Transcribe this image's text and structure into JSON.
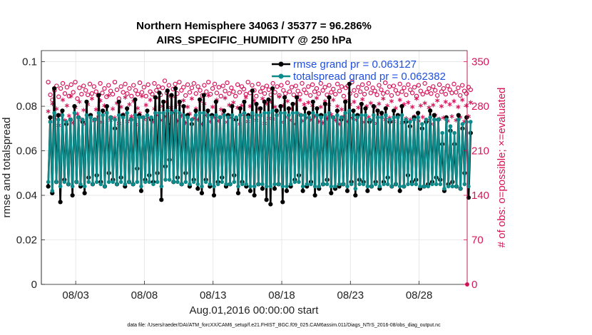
{
  "chart_data": {
    "type": "line",
    "title_line1": "Northern Hemisphere 34063 / 35377 = 96.286%",
    "title_line2": "AIRS_SPECIFIC_HUMIDITY @ 250 hPa",
    "xlabel": "Aug.01,2016 00:00:00 start",
    "ylabel": "rmse and totalspread",
    "y2label": "# of obs: o=possible; ×=evaluated",
    "footer": "data file: /Users/raeder/DAI/ATM_forcXX/CAM6_setup/f.e21.FHIST_BGC.f09_025.CAM6assim.011/Diags_NTrS_2016-08/obs_diag_output.nc",
    "x_range_days": [
      0.5,
      31.5
    ],
    "x_ticks": [
      {
        "day": 3,
        "label": "08/03"
      },
      {
        "day": 8,
        "label": "08/08"
      },
      {
        "day": 13,
        "label": "08/13"
      },
      {
        "day": 18,
        "label": "08/18"
      },
      {
        "day": 23,
        "label": "08/23"
      },
      {
        "day": 28,
        "label": "08/28"
      }
    ],
    "ylim": [
      0,
      0.105
    ],
    "y_ticks": [
      {
        "value": 0,
        "label": "0"
      },
      {
        "value": 0.02,
        "label": "0.02"
      },
      {
        "value": 0.04,
        "label": "0.04"
      },
      {
        "value": 0.06,
        "label": "0.06"
      },
      {
        "value": 0.08,
        "label": "0.08"
      },
      {
        "value": 0.1,
        "label": "0.1"
      }
    ],
    "y2lim": [
      0,
      367.5
    ],
    "y2_ticks": [
      {
        "value": 0,
        "label": "0"
      },
      {
        "value": 70,
        "label": "70"
      },
      {
        "value": 140,
        "label": "140"
      },
      {
        "value": 210,
        "label": "210"
      },
      {
        "value": 280,
        "label": "280"
      },
      {
        "value": 350,
        "label": "350"
      }
    ],
    "grid": true,
    "legend_position": "top-right",
    "series": [
      {
        "name": "rmse",
        "legend": "rmse grand pr = 0.063127",
        "color": "#000000",
        "marker": "filled-circle",
        "values": [
          0.044,
          0.075,
          0.041,
          0.088,
          0.046,
          0.076,
          0.037,
          0.078,
          0.047,
          0.072,
          0.045,
          0.074,
          0.04,
          0.08,
          0.046,
          0.075,
          0.044,
          0.073,
          0.041,
          0.082,
          0.048,
          0.076,
          0.045,
          0.074,
          0.049,
          0.085,
          0.046,
          0.078,
          0.044,
          0.08,
          0.05,
          0.075,
          0.047,
          0.07,
          0.045,
          0.082,
          0.048,
          0.076,
          0.044,
          0.079,
          0.046,
          0.074,
          0.045,
          0.083,
          0.052,
          0.076,
          0.042,
          0.075,
          0.047,
          0.078,
          0.049,
          0.074,
          0.046,
          0.084,
          0.05,
          0.086,
          0.038,
          0.082,
          0.053,
          0.087,
          0.056,
          0.085,
          0.046,
          0.088,
          0.048,
          0.082,
          0.045,
          0.08,
          0.05,
          0.076,
          0.044,
          0.072,
          0.047,
          0.078,
          0.043,
          0.083,
          0.041,
          0.085,
          0.047,
          0.078,
          0.044,
          0.076,
          0.04,
          0.082,
          0.046,
          0.075,
          0.048,
          0.078,
          0.044,
          0.076,
          0.045,
          0.08,
          0.049,
          0.074,
          0.041,
          0.079,
          0.046,
          0.082,
          0.044,
          0.076,
          0.042,
          0.087,
          0.04,
          0.081,
          0.045,
          0.079,
          0.043,
          0.082,
          0.038,
          0.083,
          0.036,
          0.088,
          0.043,
          0.078,
          0.045,
          0.08,
          0.037,
          0.084,
          0.042,
          0.079,
          0.044,
          0.081,
          0.047,
          0.084,
          0.049,
          0.076,
          0.042,
          0.079,
          0.044,
          0.077,
          0.046,
          0.082,
          0.04,
          0.079,
          0.043,
          0.076,
          0.045,
          0.081,
          0.047,
          0.084,
          0.041,
          0.075,
          0.043,
          0.078,
          0.044,
          0.074,
          0.045,
          0.082,
          0.042,
          0.09,
          0.046,
          0.078,
          0.04,
          0.076,
          0.047,
          0.081,
          0.046,
          0.079,
          0.042,
          0.073,
          0.044,
          0.08,
          0.046,
          0.078,
          0.043,
          0.077,
          0.046,
          0.079,
          0.048,
          0.073,
          0.044,
          0.078,
          0.045,
          0.076,
          0.042,
          0.08,
          0.044,
          0.073,
          0.049,
          0.071,
          0.046,
          0.075,
          0.047,
          0.077,
          0.043,
          0.07,
          0.044,
          0.073,
          0.045,
          0.078,
          0.046,
          0.076,
          0.048,
          0.074,
          0.047,
          0.063,
          0.042,
          0.075,
          0.045,
          0.069,
          0.046,
          0.063,
          0.044,
          0.076,
          0.043,
          0.07,
          0.05,
          0.075,
          0.039,
          0.068
        ]
      },
      {
        "name": "totalspread",
        "legend": "totalspread grand pr = 0.062382",
        "color": "#0d8a8a",
        "marker": "filled-circle",
        "values": [
          0.046,
          0.073,
          0.042,
          0.077,
          0.046,
          0.074,
          0.044,
          0.076,
          0.046,
          0.073,
          0.045,
          0.074,
          0.044,
          0.077,
          0.046,
          0.075,
          0.045,
          0.074,
          0.044,
          0.076,
          0.046,
          0.075,
          0.045,
          0.074,
          0.046,
          0.077,
          0.045,
          0.076,
          0.044,
          0.077,
          0.046,
          0.075,
          0.046,
          0.074,
          0.045,
          0.076,
          0.046,
          0.075,
          0.045,
          0.077,
          0.046,
          0.074,
          0.045,
          0.076,
          0.046,
          0.075,
          0.044,
          0.075,
          0.046,
          0.076,
          0.046,
          0.075,
          0.045,
          0.077,
          0.046,
          0.077,
          0.044,
          0.077,
          0.047,
          0.078,
          0.047,
          0.077,
          0.046,
          0.078,
          0.046,
          0.077,
          0.045,
          0.076,
          0.046,
          0.075,
          0.045,
          0.074,
          0.046,
          0.076,
          0.045,
          0.077,
          0.044,
          0.077,
          0.046,
          0.076,
          0.045,
          0.075,
          0.044,
          0.076,
          0.045,
          0.075,
          0.046,
          0.076,
          0.045,
          0.075,
          0.045,
          0.076,
          0.046,
          0.075,
          0.044,
          0.076,
          0.045,
          0.077,
          0.045,
          0.075,
          0.044,
          0.077,
          0.044,
          0.076,
          0.045,
          0.076,
          0.045,
          0.077,
          0.044,
          0.077,
          0.044,
          0.078,
          0.045,
          0.076,
          0.045,
          0.077,
          0.044,
          0.077,
          0.044,
          0.076,
          0.045,
          0.077,
          0.046,
          0.077,
          0.046,
          0.076,
          0.044,
          0.076,
          0.045,
          0.075,
          0.045,
          0.077,
          0.044,
          0.076,
          0.044,
          0.075,
          0.045,
          0.076,
          0.045,
          0.077,
          0.044,
          0.075,
          0.044,
          0.076,
          0.045,
          0.075,
          0.045,
          0.077,
          0.044,
          0.078,
          0.045,
          0.076,
          0.043,
          0.075,
          0.045,
          0.076,
          0.045,
          0.076,
          0.044,
          0.074,
          0.044,
          0.076,
          0.045,
          0.075,
          0.044,
          0.075,
          0.045,
          0.076,
          0.045,
          0.074,
          0.044,
          0.075,
          0.045,
          0.075,
          0.044,
          0.076,
          0.044,
          0.074,
          0.045,
          0.073,
          0.045,
          0.074,
          0.045,
          0.075,
          0.044,
          0.072,
          0.044,
          0.074,
          0.044,
          0.075,
          0.045,
          0.074,
          0.045,
          0.074,
          0.045,
          0.068,
          0.043,
          0.074,
          0.044,
          0.071,
          0.044,
          0.068,
          0.044,
          0.074,
          0.043,
          0.072,
          0.045,
          0.073,
          0.044,
          0.073
        ]
      },
      {
        "name": "possible",
        "color": "#d6145a",
        "marker": "open-circle",
        "values": [
          318,
          298,
          290,
          305,
          312,
          295,
          308,
          316,
          300,
          310,
          296,
          314,
          302,
          318,
          292,
          309,
          299,
          312,
          305,
          298,
          315,
          300,
          311,
          303,
          297,
          316,
          301,
          308,
          295,
          313,
          304,
          299,
          318,
          306,
          292,
          311,
          302,
          315,
          300,
          308,
          296,
          313,
          305,
          299,
          317,
          302,
          310,
          296,
          314,
          303,
          299,
          316,
          305,
          311,
          298,
          309,
          320,
          301,
          313,
          296,
          307,
          315,
          300,
          318,
          305,
          310,
          297,
          314,
          302,
          309,
          316,
          300,
          311,
          305,
          297,
          313,
          303,
          318,
          299,
          308,
          315,
          301,
          310,
          296,
          312,
          304,
          317,
          300,
          309,
          303,
          296,
          314,
          302,
          311,
          307,
          299,
          318,
          301,
          313,
          305,
          296,
          315,
          303,
          309,
          300,
          312,
          306,
          298,
          316,
          302,
          311,
          297,
          313,
          305,
          300,
          317,
          303,
          310,
          298,
          312,
          304,
          299,
          316,
          306,
          301,
          311,
          297,
          314,
          303,
          308,
          300,
          316,
          305,
          310,
          298,
          313,
          302,
          307,
          299,
          315,
          304,
          311,
          296,
          309,
          312,
          300,
          318,
          305,
          297,
          310,
          303,
          314,
          299,
          308,
          316,
          301,
          309,
          304,
          298,
          313,
          306,
          300,
          317,
          302,
          311,
          297,
          312,
          305,
          300,
          315,
          303,
          309,
          298,
          314,
          306,
          301,
          310,
          296,
          313,
          304,
          299,
          316,
          302,
          308,
          300,
          311,
          305,
          297,
          314,
          303,
          308,
          299,
          312,
          306,
          301,
          315,
          302,
          309,
          297,
          313,
          304,
          300,
          310,
          306
        ]
      },
      {
        "name": "evaluated",
        "color": "#d6145a",
        "marker": "asterisk",
        "values": [
          272,
          256,
          284,
          262,
          276,
          250,
          267,
          290,
          258,
          281,
          265,
          296,
          254,
          278,
          268,
          287,
          259,
          274,
          252,
          283,
          266,
          292,
          257,
          275,
          263,
          289,
          255,
          281,
          270,
          297,
          258,
          276,
          262,
          285,
          253,
          279,
          267,
          294,
          256,
          283,
          264,
          288,
          251,
          277,
          269,
          296,
          259,
          282,
          262,
          290,
          255,
          276,
          266,
          293,
          258,
          280,
          264,
          287,
          252,
          278,
          270,
          295,
          257,
          283,
          265,
          289,
          254,
          279,
          268,
          292,
          261,
          276,
          259,
          288,
          252,
          284,
          266,
          297,
          256,
          279,
          263,
          290,
          257,
          275,
          268,
          293,
          255,
          282,
          262,
          286,
          259,
          278,
          252,
          281,
          267,
          294,
          256,
          280,
          263,
          289,
          258,
          276,
          265,
          292,
          253,
          284,
          261,
          287,
          260,
          279,
          266,
          295,
          255,
          281,
          263,
          288,
          258,
          276,
          252,
          284,
          269,
          290,
          257,
          283,
          262,
          286,
          259,
          281,
          264,
          293,
          256,
          279,
          254,
          288,
          261,
          283,
          267,
          290,
          258,
          280,
          252,
          275,
          264,
          289,
          256,
          283,
          262,
          287,
          259,
          278,
          266,
          291,
          255,
          280,
          263,
          285,
          258,
          279,
          253,
          284,
          267,
          292,
          259,
          281,
          262,
          288,
          256,
          277,
          265,
          290,
          254,
          283,
          261,
          286,
          259,
          279,
          264,
          292,
          257,
          281,
          263,
          285,
          258,
          278,
          252,
          282,
          266,
          289,
          260,
          280,
          262,
          287,
          257,
          283,
          264,
          288,
          258,
          279,
          263,
          290,
          256,
          281,
          264,
          286
        ]
      }
    ]
  }
}
